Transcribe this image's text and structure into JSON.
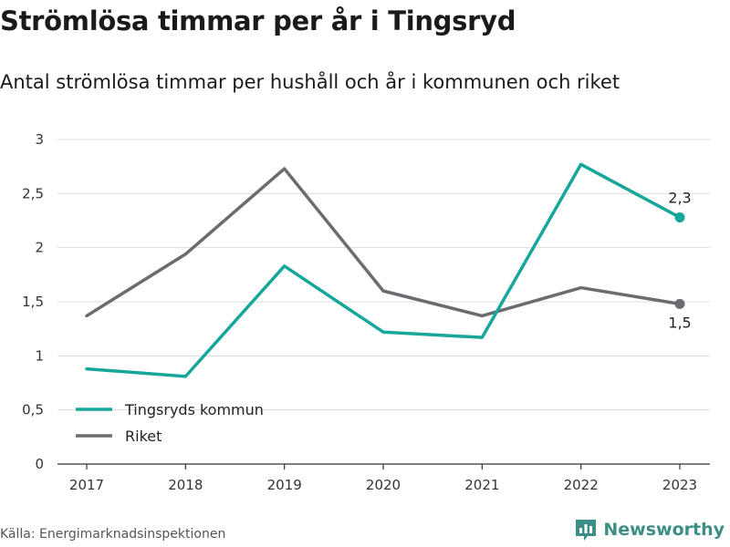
{
  "header": {
    "title": "Strömlösa timmar per år i Tingsryd",
    "subtitle": "Antal strömlösa timmar per hushåll och år i kommunen och riket"
  },
  "footer": {
    "source": "Källa: Energimarknadsinspektionen",
    "brand": "Newsworthy",
    "brand_icon": "newsworthy-logo-icon"
  },
  "colors": {
    "tingsryd": "#16a69a",
    "riket": "#6b6b72",
    "grid": "#dddddd",
    "axis": "#333333",
    "brand": "#3d8f86"
  },
  "chart_data": {
    "type": "line",
    "title": "",
    "xlabel": "",
    "ylabel": "",
    "categories": [
      "2017",
      "2018",
      "2019",
      "2020",
      "2021",
      "2022",
      "2023"
    ],
    "ylim": [
      0,
      3
    ],
    "yticks": [
      0,
      0.5,
      1,
      1.5,
      2,
      2.5,
      3
    ],
    "ytick_labels": [
      "0",
      "0,5",
      "1",
      "1,5",
      "2",
      "2,5",
      "3"
    ],
    "grid": true,
    "legend_position": "bottom-left",
    "series": [
      {
        "name": "Tingsryds kommun",
        "values": [
          0.88,
          0.81,
          1.83,
          1.22,
          1.17,
          2.77,
          2.28
        ],
        "end_label": "2,3",
        "end_label_position": "above"
      },
      {
        "name": "Riket",
        "values": [
          1.37,
          1.94,
          2.73,
          1.6,
          1.37,
          1.63,
          1.48
        ],
        "end_label": "1,5",
        "end_label_position": "below"
      }
    ]
  }
}
